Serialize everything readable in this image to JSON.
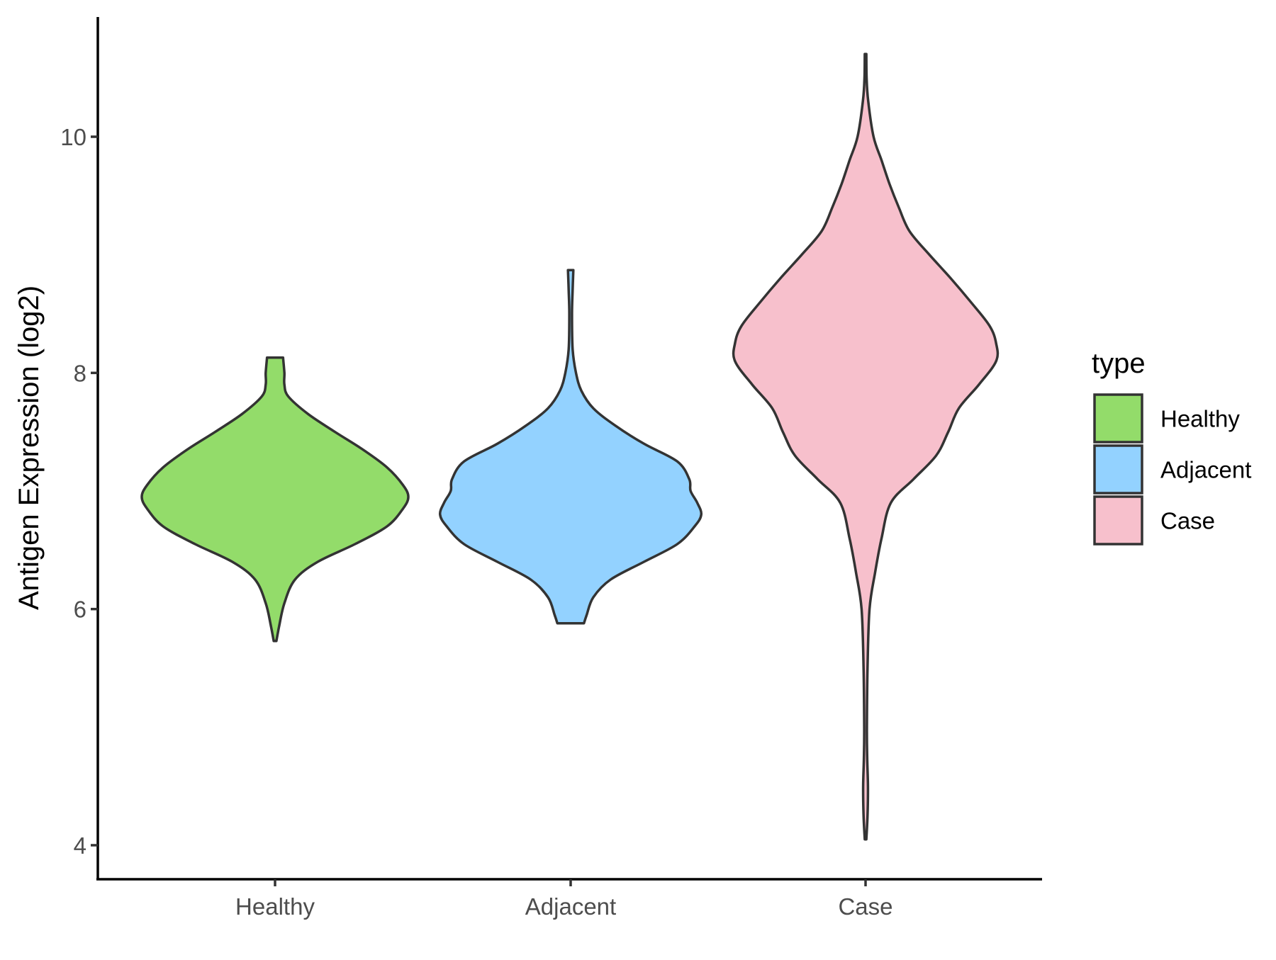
{
  "chart_data": {
    "type": "violin",
    "title": "",
    "xlabel": "",
    "ylabel": "Antigen Expression (log2)",
    "ylim": [
      3.7,
      11.0
    ],
    "yticks": [
      4,
      6,
      8,
      10
    ],
    "grid": false,
    "legend": {
      "title": "type",
      "placement": "right"
    },
    "categories": [
      "Healthy",
      "Adjacent",
      "Case"
    ],
    "series": [
      {
        "name": "Healthy",
        "color": "#93DC6A",
        "profile": [
          [
            5.73,
            0.01
          ],
          [
            5.85,
            0.03
          ],
          [
            6.05,
            0.07
          ],
          [
            6.25,
            0.15
          ],
          [
            6.4,
            0.32
          ],
          [
            6.55,
            0.6
          ],
          [
            6.7,
            0.84
          ],
          [
            6.85,
            0.96
          ],
          [
            6.95,
            1.0
          ],
          [
            7.05,
            0.96
          ],
          [
            7.2,
            0.84
          ],
          [
            7.35,
            0.66
          ],
          [
            7.5,
            0.45
          ],
          [
            7.65,
            0.25
          ],
          [
            7.8,
            0.1
          ],
          [
            7.9,
            0.07
          ],
          [
            8.0,
            0.07
          ],
          [
            8.13,
            0.06
          ]
        ]
      },
      {
        "name": "Adjacent",
        "color": "#93D2FF",
        "profile": [
          [
            5.88,
            0.1
          ],
          [
            5.95,
            0.12
          ],
          [
            6.1,
            0.17
          ],
          [
            6.25,
            0.3
          ],
          [
            6.4,
            0.55
          ],
          [
            6.55,
            0.8
          ],
          [
            6.7,
            0.93
          ],
          [
            6.8,
            0.98
          ],
          [
            6.9,
            0.95
          ],
          [
            7.0,
            0.9
          ],
          [
            7.1,
            0.89
          ],
          [
            7.25,
            0.8
          ],
          [
            7.4,
            0.55
          ],
          [
            7.55,
            0.34
          ],
          [
            7.7,
            0.17
          ],
          [
            7.85,
            0.08
          ],
          [
            8.0,
            0.04
          ],
          [
            8.2,
            0.015
          ],
          [
            8.5,
            0.01
          ],
          [
            8.7,
            0.015
          ],
          [
            8.87,
            0.02
          ]
        ]
      },
      {
        "name": "Case",
        "color": "#F7C0CC",
        "profile": [
          [
            4.05,
            0.006
          ],
          [
            4.25,
            0.015
          ],
          [
            4.5,
            0.018
          ],
          [
            4.75,
            0.012
          ],
          [
            5.0,
            0.01
          ],
          [
            5.5,
            0.015
          ],
          [
            6.0,
            0.03
          ],
          [
            6.3,
            0.07
          ],
          [
            6.6,
            0.12
          ],
          [
            6.9,
            0.19
          ],
          [
            7.1,
            0.36
          ],
          [
            7.3,
            0.53
          ],
          [
            7.5,
            0.62
          ],
          [
            7.7,
            0.7
          ],
          [
            7.9,
            0.85
          ],
          [
            8.1,
            0.98
          ],
          [
            8.25,
            0.98
          ],
          [
            8.4,
            0.93
          ],
          [
            8.6,
            0.79
          ],
          [
            8.8,
            0.64
          ],
          [
            9.0,
            0.48
          ],
          [
            9.2,
            0.33
          ],
          [
            9.4,
            0.25
          ],
          [
            9.6,
            0.18
          ],
          [
            9.8,
            0.12
          ],
          [
            10.0,
            0.06
          ],
          [
            10.3,
            0.02
          ],
          [
            10.5,
            0.008
          ],
          [
            10.7,
            0.006
          ]
        ]
      }
    ]
  }
}
